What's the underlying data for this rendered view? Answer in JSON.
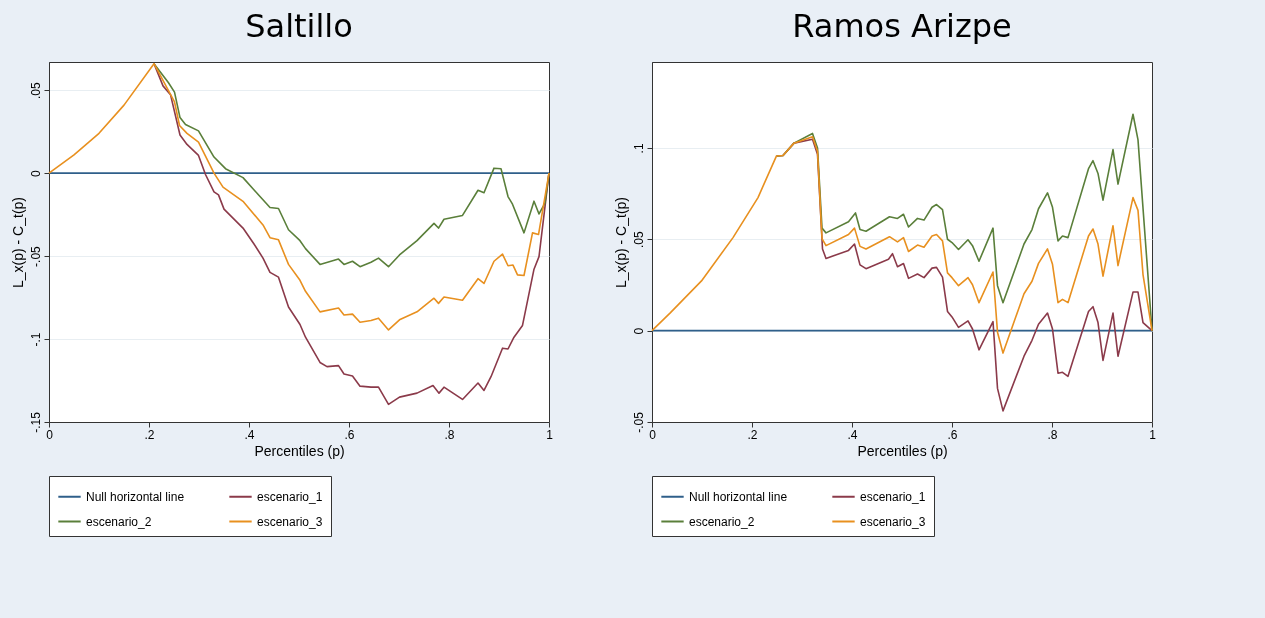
{
  "chart_data": [
    {
      "type": "line",
      "title": "Saltillo",
      "xlabel": "Percentiles (p)",
      "ylabel": "L_x(p) - C_t(p)",
      "xlim": [
        0,
        1
      ],
      "ylim": [
        -0.15,
        0.067
      ],
      "xticks": [
        {
          "value": 0,
          "label": "0"
        },
        {
          "value": 0.2,
          "label": ".2"
        },
        {
          "value": 0.4,
          "label": ".4"
        },
        {
          "value": 0.6,
          "label": ".6"
        },
        {
          "value": 0.8,
          "label": ".8"
        },
        1
      ],
      "yticks": [
        {
          "value": -0.15,
          "label": "-.15"
        },
        {
          "value": -0.1,
          "label": "-.1"
        },
        {
          "value": -0.05,
          "label": "-.05"
        },
        {
          "value": 0,
          "label": "0"
        },
        {
          "value": 0.05,
          "label": ".05"
        }
      ],
      "grid": "y",
      "legend": "bottom",
      "series": [
        {
          "name": "Null horizontal line",
          "color": "#2f5f8a",
          "x": [
            0,
            1
          ],
          "values": [
            0,
            0
          ]
        },
        {
          "name": "escenario_1",
          "color": "#8b3a4a",
          "x": [
            0.21,
            0.228,
            0.243,
            0.262,
            0.276,
            0.299,
            0.313,
            0.33,
            0.339,
            0.35,
            0.388,
            0.41,
            0.428,
            0.442,
            0.459,
            0.479,
            0.502,
            0.513,
            0.542,
            0.556,
            0.579,
            0.59,
            0.607,
            0.622,
            0.644,
            0.659,
            0.679,
            0.701,
            0.736,
            0.768,
            0.78,
            0.79,
            0.827,
            0.858,
            0.87,
            0.884,
            0.907,
            0.918,
            0.93,
            0.947,
            0.97,
            0.98,
            1
          ],
          "values": [
            0.066,
            0.0526,
            0.0473,
            0.023,
            0.0173,
            0.0107,
            -0.0008,
            -0.0113,
            -0.0131,
            -0.0217,
            -0.0331,
            -0.0427,
            -0.0512,
            -0.0598,
            -0.0627,
            -0.0807,
            -0.0912,
            -0.0989,
            -0.1141,
            -0.1166,
            -0.116,
            -0.1211,
            -0.1223,
            -0.1284,
            -0.129,
            -0.129,
            -0.1394,
            -0.135,
            -0.1326,
            -0.128,
            -0.1326,
            -0.129,
            -0.1364,
            -0.1265,
            -0.131,
            -0.1227,
            -0.1055,
            -0.106,
            -0.0989,
            -0.0918,
            -0.0579,
            -0.0503,
            0
          ]
        },
        {
          "name": "escenario_2",
          "color": "#5a7f3a",
          "x": [
            0.21,
            0.239,
            0.251,
            0.262,
            0.273,
            0.299,
            0.33,
            0.353,
            0.388,
            0.422,
            0.442,
            0.459,
            0.479,
            0.502,
            0.513,
            0.542,
            0.579,
            0.59,
            0.607,
            0.622,
            0.644,
            0.659,
            0.679,
            0.701,
            0.736,
            0.77,
            0.779,
            0.79,
            0.827,
            0.858,
            0.87,
            0.89,
            0.904,
            0.918,
            0.927,
            0.95,
            0.97,
            0.98,
            0.992,
            1
          ],
          "values": [
            0.066,
            0.0545,
            0.0488,
            0.0335,
            0.0293,
            0.0255,
            0.0097,
            0.0027,
            -0.0027,
            -0.0141,
            -0.0207,
            -0.0213,
            -0.0341,
            -0.0407,
            -0.0455,
            -0.055,
            -0.0518,
            -0.055,
            -0.0531,
            -0.0564,
            -0.0537,
            -0.0512,
            -0.0564,
            -0.0493,
            -0.0407,
            -0.0303,
            -0.0331,
            -0.0278,
            -0.0255,
            -0.0103,
            -0.0118,
            0.003,
            0.0027,
            -0.0141,
            -0.0187,
            -0.036,
            -0.0169,
            -0.0246,
            -0.018,
            0
          ]
        },
        {
          "name": "escenario_3",
          "color": "#e8901f",
          "x": [
            0,
            0.05,
            0.1,
            0.15,
            0.21,
            0.251,
            0.261,
            0.276,
            0.299,
            0.33,
            0.348,
            0.388,
            0.428,
            0.442,
            0.459,
            0.479,
            0.502,
            0.513,
            0.542,
            0.579,
            0.59,
            0.607,
            0.622,
            0.644,
            0.659,
            0.679,
            0.701,
            0.736,
            0.77,
            0.779,
            0.79,
            0.827,
            0.858,
            0.87,
            0.89,
            0.907,
            0.918,
            0.928,
            0.937,
            0.95,
            0.967,
            0.979,
            1
          ],
          "values": [
            0,
            0.011,
            0.024,
            0.041,
            0.066,
            0.043,
            0.0287,
            0.024,
            0.0187,
            0,
            -0.0084,
            -0.017,
            -0.0312,
            -0.0389,
            -0.0402,
            -0.055,
            -0.0646,
            -0.0712,
            -0.0836,
            -0.0813,
            -0.0855,
            -0.085,
            -0.0899,
            -0.0888,
            -0.0874,
            -0.0945,
            -0.0884,
            -0.0836,
            -0.0754,
            -0.0785,
            -0.0747,
            -0.0766,
            -0.0636,
            -0.0665,
            -0.0531,
            -0.0488,
            -0.0558,
            -0.0554,
            -0.0613,
            -0.0617,
            -0.036,
            -0.037,
            0
          ]
        }
      ]
    },
    {
      "type": "line",
      "title": "Ramos Arizpe",
      "xlabel": "Percentiles (p)",
      "ylabel": "L_x(p) - C_t(p)",
      "xlim": [
        0,
        1
      ],
      "ylim": [
        -0.05,
        0.147
      ],
      "xticks": [
        {
          "value": 0,
          "label": "0"
        },
        {
          "value": 0.2,
          "label": ".2"
        },
        {
          "value": 0.4,
          "label": ".4"
        },
        {
          "value": 0.6,
          "label": ".6"
        },
        {
          "value": 0.8,
          "label": ".8"
        },
        1
      ],
      "yticks": [
        {
          "value": -0.05,
          "label": "-.05"
        },
        {
          "value": 0,
          "label": "0"
        },
        {
          "value": 0.05,
          "label": ".05"
        },
        {
          "value": 0.1,
          "label": ".1"
        }
      ],
      "grid": "y",
      "legend": "bottom",
      "series": [
        {
          "name": "Null horizontal line",
          "color": "#2f5f8a",
          "x": [
            0,
            1
          ],
          "values": [
            0,
            0
          ]
        },
        {
          "name": "escenario_1",
          "color": "#8b3a4a",
          "x": [
            0.249,
            0.262,
            0.284,
            0.321,
            0.331,
            0.341,
            0.348,
            0.393,
            0.405,
            0.416,
            0.428,
            0.473,
            0.481,
            0.491,
            0.503,
            0.513,
            0.531,
            0.544,
            0.56,
            0.569,
            0.581,
            0.591,
            0.6,
            0.613,
            0.632,
            0.641,
            0.654,
            0.682,
            0.691,
            0.702,
            0.744,
            0.76,
            0.773,
            0.791,
            0.801,
            0.812,
            0.821,
            0.832,
            0.873,
            0.882,
            0.892,
            0.902,
            0.922,
            0.932,
            0.962,
            0.972,
            0.982,
            1
          ],
          "values": [
            0.0956,
            0.0958,
            0.1026,
            0.1047,
            0.0965,
            0.0447,
            0.0395,
            0.0439,
            0.0474,
            0.036,
            0.0339,
            0.0391,
            0.0421,
            0.035,
            0.0367,
            0.0286,
            0.031,
            0.029,
            0.0342,
            0.0346,
            0.0293,
            0.0105,
            0.0075,
            0.0018,
            0.0053,
            0.0009,
            -0.0105,
            0.0049,
            -0.0316,
            -0.0439,
            -0.014,
            -0.0053,
            0.0035,
            0.0096,
            0.0009,
            -0.0233,
            -0.0228,
            -0.025,
            0.0105,
            0.0131,
            0.0044,
            -0.0163,
            0.0096,
            -0.014,
            0.0211,
            0.0211,
            0.0044,
            0
          ]
        },
        {
          "name": "escenario_2",
          "color": "#5a7f3a",
          "x": [
            0.249,
            0.262,
            0.284,
            0.321,
            0.331,
            0.34,
            0.348,
            0.393,
            0.407,
            0.416,
            0.428,
            0.475,
            0.491,
            0.503,
            0.513,
            0.531,
            0.544,
            0.56,
            0.569,
            0.581,
            0.591,
            0.6,
            0.613,
            0.632,
            0.641,
            0.654,
            0.682,
            0.691,
            0.702,
            0.744,
            0.76,
            0.773,
            0.791,
            0.801,
            0.812,
            0.821,
            0.832,
            0.873,
            0.882,
            0.892,
            0.902,
            0.922,
            0.932,
            0.962,
            0.972,
            1
          ],
          "values": [
            0.0956,
            0.0958,
            0.1026,
            0.1079,
            0.1,
            0.0561,
            0.0535,
            0.0596,
            0.0644,
            0.0553,
            0.0544,
            0.0623,
            0.0614,
            0.0637,
            0.0567,
            0.0614,
            0.0605,
            0.0675,
            0.069,
            0.0662,
            0.05,
            0.0482,
            0.0444,
            0.0497,
            0.0465,
            0.038,
            0.0561,
            0.0246,
            0.0153,
            0.0474,
            0.0553,
            0.0667,
            0.0754,
            0.0675,
            0.0491,
            0.0518,
            0.0509,
            0.0886,
            0.093,
            0.086,
            0.0714,
            0.0991,
            0.0802,
            0.1184,
            0.1044,
            0
          ]
        },
        {
          "name": "escenario_3",
          "color": "#e8901f",
          "x": [
            0,
            0.036,
            0.099,
            0.162,
            0.212,
            0.249,
            0.262,
            0.284,
            0.321,
            0.331,
            0.34,
            0.348,
            0.393,
            0.405,
            0.416,
            0.428,
            0.475,
            0.491,
            0.503,
            0.513,
            0.531,
            0.544,
            0.56,
            0.569,
            0.581,
            0.591,
            0.6,
            0.613,
            0.632,
            0.641,
            0.654,
            0.682,
            0.691,
            0.702,
            0.744,
            0.76,
            0.773,
            0.791,
            0.801,
            0.812,
            0.821,
            0.832,
            0.873,
            0.882,
            0.892,
            0.902,
            0.922,
            0.932,
            0.962,
            0.972,
            0.982,
            1
          ],
          "values": [
            0,
            0.0096,
            0.0272,
            0.0509,
            0.0728,
            0.0956,
            0.0958,
            0.1026,
            0.1061,
            0.0982,
            0.0504,
            0.0465,
            0.0526,
            0.0561,
            0.0461,
            0.0447,
            0.0514,
            0.0486,
            0.0509,
            0.0433,
            0.0468,
            0.0456,
            0.0518,
            0.0526,
            0.0491,
            0.0316,
            0.029,
            0.0246,
            0.029,
            0.0251,
            0.0153,
            0.0321,
            -0.0009,
            -0.0123,
            0.0202,
            0.027,
            0.0368,
            0.0447,
            0.0363,
            0.0153,
            0.0171,
            0.0153,
            0.0518,
            0.0556,
            0.0474,
            0.0298,
            0.0574,
            0.0356,
            0.0728,
            0.0658,
            0.0307,
            0
          ]
        }
      ]
    }
  ]
}
